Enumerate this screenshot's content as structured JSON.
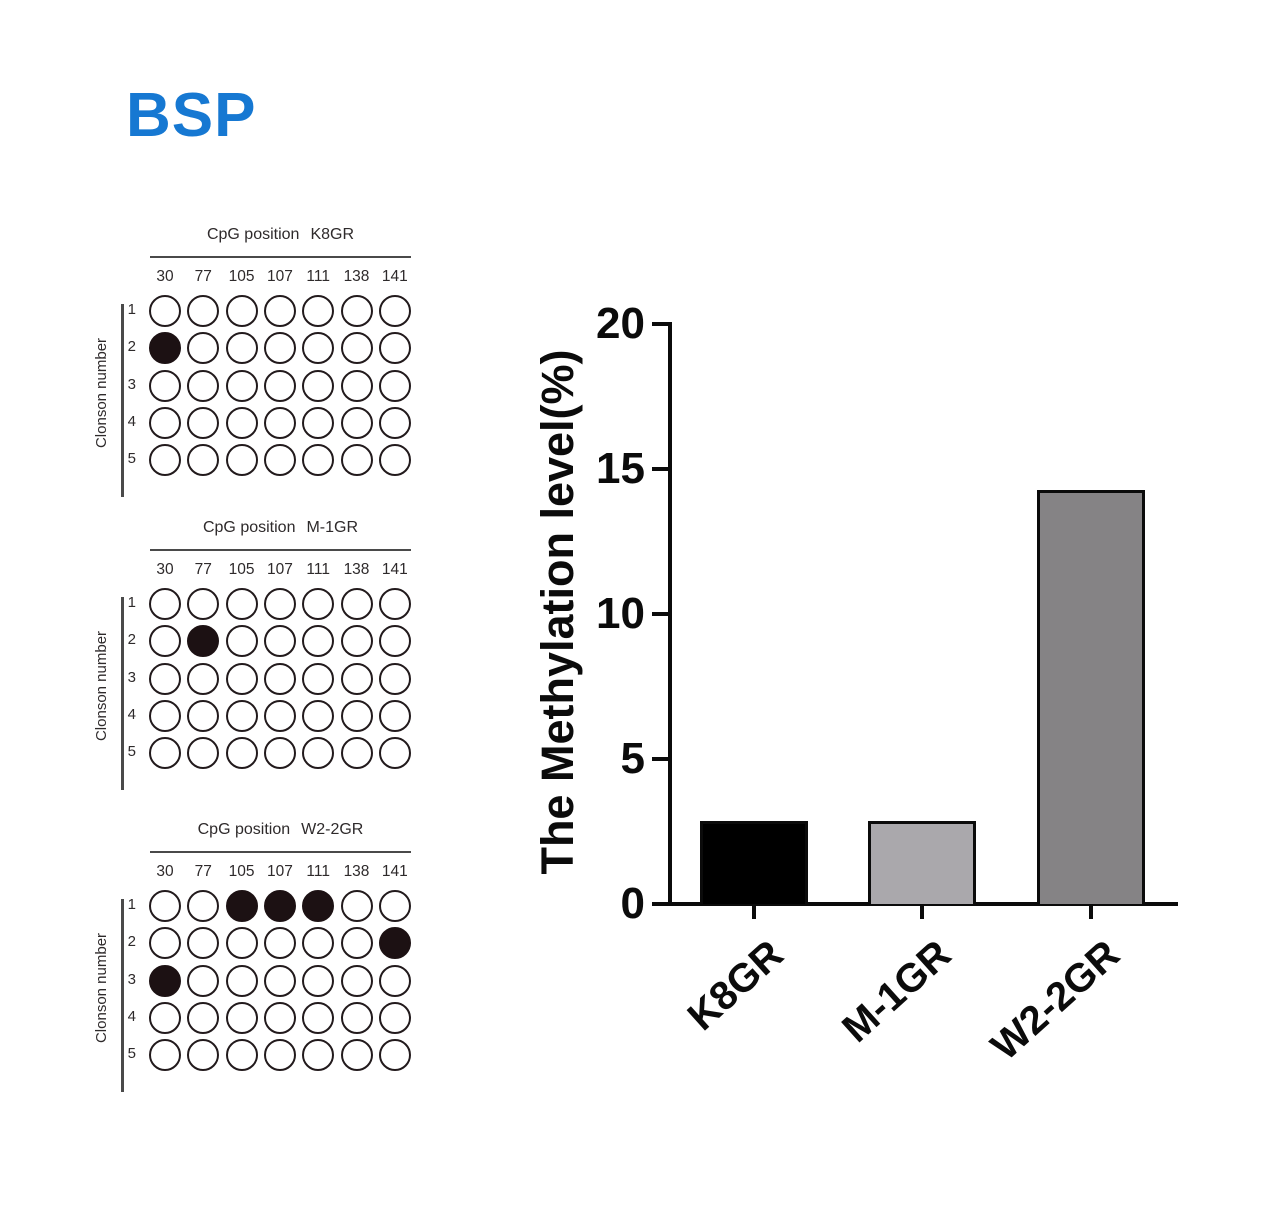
{
  "title": {
    "text": "BSP",
    "color": "#1678D2"
  },
  "chart_data": [
    {
      "type": "heatmap",
      "name": "K8GR",
      "title_prefix": "CpG position",
      "title": "CpG position  K8GR",
      "ylabel": "Clonson number",
      "x_labels": [
        "30",
        "77",
        "105",
        "107",
        "111",
        "138",
        "141"
      ],
      "y_labels": [
        "1",
        "2",
        "3",
        "4",
        "5"
      ],
      "values": [
        [
          0,
          0,
          0,
          0,
          0,
          0,
          0
        ],
        [
          1,
          0,
          0,
          0,
          0,
          0,
          0
        ],
        [
          0,
          0,
          0,
          0,
          0,
          0,
          0
        ],
        [
          0,
          0,
          0,
          0,
          0,
          0,
          0
        ],
        [
          0,
          0,
          0,
          0,
          0,
          0,
          0
        ]
      ],
      "filled_color": "#1C1113"
    },
    {
      "type": "heatmap",
      "name": "M-1GR",
      "title_prefix": "CpG position",
      "title": "CpG position  M-1GR",
      "ylabel": "Clonson number",
      "x_labels": [
        "30",
        "77",
        "105",
        "107",
        "111",
        "138",
        "141"
      ],
      "y_labels": [
        "1",
        "2",
        "3",
        "4",
        "5"
      ],
      "values": [
        [
          0,
          0,
          0,
          0,
          0,
          0,
          0
        ],
        [
          0,
          1,
          0,
          0,
          0,
          0,
          0
        ],
        [
          0,
          0,
          0,
          0,
          0,
          0,
          0
        ],
        [
          0,
          0,
          0,
          0,
          0,
          0,
          0
        ],
        [
          0,
          0,
          0,
          0,
          0,
          0,
          0
        ]
      ],
      "filled_color": "#1C1113"
    },
    {
      "type": "heatmap",
      "name": "W2-2GR",
      "title_prefix": "CpG position",
      "title": "CpG position  W2-2GR",
      "ylabel": "Clonson number",
      "x_labels": [
        "30",
        "77",
        "105",
        "107",
        "111",
        "138",
        "141"
      ],
      "y_labels": [
        "1",
        "2",
        "3",
        "4",
        "5"
      ],
      "values": [
        [
          0,
          0,
          1,
          1,
          1,
          0,
          0
        ],
        [
          0,
          0,
          0,
          0,
          0,
          0,
          1
        ],
        [
          1,
          0,
          0,
          0,
          0,
          0,
          0
        ],
        [
          0,
          0,
          0,
          0,
          0,
          0,
          0
        ],
        [
          0,
          0,
          0,
          0,
          0,
          0,
          0
        ]
      ],
      "filled_color": "#1C1113"
    },
    {
      "type": "bar",
      "title": "",
      "xlabel": "",
      "ylabel": "The Methylation level(%)",
      "categories": [
        "K8GR",
        "M-1GR",
        "W2-2GR"
      ],
      "values": [
        2.86,
        2.86,
        14.29
      ],
      "bar_colors": [
        "#000000",
        "#AAA8AC",
        "#858385"
      ],
      "ylim": [
        0,
        20
      ],
      "yticks": [
        0,
        5,
        10,
        15,
        20
      ],
      "grid": false,
      "legend": false
    }
  ]
}
